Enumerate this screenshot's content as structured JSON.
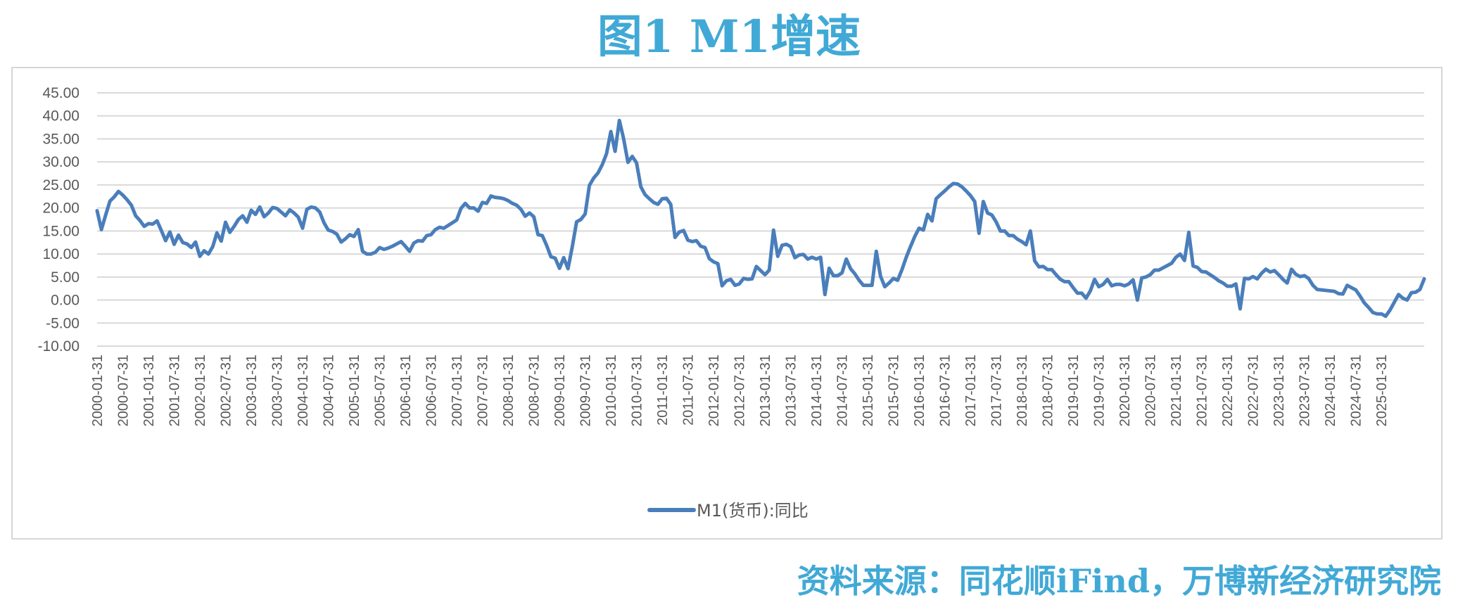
{
  "figure": {
    "title": "图1 M1增速",
    "source": "资料来源：同花顺iFind，万博新经济研究院",
    "accent_color": "#41a9d6"
  },
  "chart_data": {
    "type": "line",
    "title": "",
    "xlabel": "",
    "ylabel": "",
    "ylim": [
      -10,
      45
    ],
    "yticks": [
      "45.00",
      "40.00",
      "35.00",
      "30.00",
      "25.00",
      "20.00",
      "15.00",
      "10.00",
      "5.00",
      "0.00",
      "-5.00",
      "-10.00"
    ],
    "x_tick_labels": [
      "2000-01-31",
      "2000-07-31",
      "2001-01-31",
      "2001-07-31",
      "2002-01-31",
      "2002-07-31",
      "2003-01-31",
      "2003-07-31",
      "2004-01-31",
      "2004-07-31",
      "2005-01-31",
      "2005-07-31",
      "2006-01-31",
      "2006-07-31",
      "2007-01-31",
      "2007-07-31",
      "2008-01-31",
      "2008-07-31",
      "2009-01-31",
      "2009-07-31",
      "2010-01-31",
      "2010-07-31",
      "2011-01-31",
      "2011-07-31",
      "2012-01-31",
      "2012-07-31",
      "2013-01-31",
      "2013-07-31",
      "2014-01-31",
      "2014-07-31",
      "2015-01-31",
      "2015-07-31",
      "2016-01-31",
      "2016-07-31",
      "2017-01-31",
      "2017-07-31",
      "2018-01-31",
      "2018-07-31",
      "2019-01-31",
      "2019-07-31",
      "2020-01-31",
      "2020-07-31",
      "2021-01-31",
      "2021-07-31",
      "2022-01-31",
      "2022-07-31",
      "2023-01-31",
      "2023-07-31",
      "2024-01-31",
      "2024-07-31",
      "2025-01-31"
    ],
    "grid": true,
    "legend": "bottom-center",
    "series": [
      {
        "name": "M1(货币):同比",
        "color": "#4a7ebb",
        "x_start": "2000-01",
        "frequency": "monthly",
        "values": [
          19.4,
          15.3,
          18.5,
          21.5,
          22.4,
          23.6,
          22.8,
          21.8,
          20.6,
          18.3,
          17.3,
          16.0,
          16.6,
          16.5,
          17.2,
          15.1,
          12.9,
          14.8,
          12.1,
          14.1,
          12.5,
          12.2,
          11.4,
          12.6,
          9.5,
          10.7,
          10.0,
          11.6,
          14.6,
          12.8,
          16.9,
          14.7,
          16.0,
          17.5,
          18.3,
          16.9,
          19.5,
          18.6,
          20.2,
          18.1,
          18.9,
          20.1,
          19.9,
          19.1,
          18.3,
          19.6,
          18.9,
          18.0,
          15.6,
          19.7,
          20.2,
          20.0,
          19.1,
          16.8,
          15.2,
          14.9,
          14.3,
          12.6,
          13.3,
          14.2,
          13.8,
          15.3,
          10.6,
          10.0,
          10.0,
          10.4,
          11.4,
          11.0,
          11.3,
          11.7,
          12.2,
          12.7,
          11.7,
          10.6,
          12.4,
          12.9,
          12.8,
          14.0,
          14.2,
          15.3,
          15.8,
          15.6,
          16.2,
          16.8,
          17.4,
          19.9,
          21.0,
          20.0,
          20.0,
          19.3,
          21.2,
          21.0,
          22.6,
          22.3,
          22.2,
          22.0,
          21.6,
          21.0,
          20.6,
          19.7,
          18.2,
          18.9,
          18.1,
          14.2,
          14.0,
          11.9,
          9.4,
          9.1,
          6.9,
          9.2,
          6.8,
          11.6,
          17.0,
          17.5,
          18.7,
          24.9,
          26.5,
          27.6,
          29.4,
          31.8,
          36.6,
          32.3,
          39.0,
          35.0,
          29.9,
          31.2,
          29.8,
          24.6,
          22.9,
          22.0,
          21.2,
          20.8,
          22.0,
          22.1,
          20.8,
          13.6,
          14.8,
          15.1,
          13.0,
          12.7,
          12.9,
          11.7,
          11.4,
          9.0,
          8.3,
          7.9,
          3.1,
          4.2,
          4.5,
          3.2,
          3.5,
          4.7,
          4.5,
          4.6,
          7.3,
          6.4,
          5.5,
          6.5,
          15.2,
          9.5,
          11.9,
          12.1,
          11.6,
          9.2,
          9.8,
          9.9,
          8.9,
          9.3,
          8.9,
          9.3,
          1.2,
          6.9,
          5.3,
          5.3,
          5.9,
          8.9,
          6.8,
          5.7,
          4.3,
          3.2,
          3.2,
          3.2,
          10.6,
          5.2,
          2.9,
          3.7,
          4.7,
          4.3,
          6.6,
          9.3,
          11.6,
          13.8,
          15.6,
          15.2,
          18.6,
          17.2,
          22.0,
          22.9,
          23.7,
          24.6,
          25.3,
          25.2,
          24.6,
          23.7,
          22.7,
          21.4,
          14.5,
          21.4,
          18.9,
          18.5,
          17.0,
          15.0,
          15.0,
          14.0,
          14.0,
          13.2,
          12.7,
          12.0,
          15.0,
          8.5,
          7.2,
          7.3,
          6.6,
          6.6,
          5.5,
          4.5,
          4.0,
          4.0,
          2.7,
          1.5,
          1.5,
          0.4,
          2.0,
          4.5,
          2.9,
          3.4,
          4.5,
          3.1,
          3.4,
          3.4,
          3.1,
          3.5,
          4.4,
          0.0,
          4.8,
          5.0,
          5.5,
          6.5,
          6.5,
          7.0,
          7.5,
          8.0,
          9.3,
          10.0,
          8.6,
          14.7,
          7.4,
          7.1,
          6.2,
          6.1,
          5.5,
          4.9,
          4.2,
          3.7,
          3.0,
          3.0,
          3.5,
          -1.9,
          4.7,
          4.6,
          5.1,
          4.6,
          5.8,
          6.7,
          6.1,
          6.4,
          5.5,
          4.5,
          3.7,
          6.7,
          5.6,
          5.1,
          5.3,
          4.7,
          3.2,
          2.3,
          2.2,
          2.1,
          2.0,
          1.9,
          1.4,
          1.3,
          3.2,
          2.7,
          2.2,
          0.9,
          -0.6,
          -1.6,
          -2.7,
          -3.0,
          -3.0,
          -3.5,
          -2.2,
          -0.5,
          1.2,
          0.4,
          0.0,
          1.6,
          1.7,
          2.3,
          4.6
        ]
      }
    ]
  }
}
